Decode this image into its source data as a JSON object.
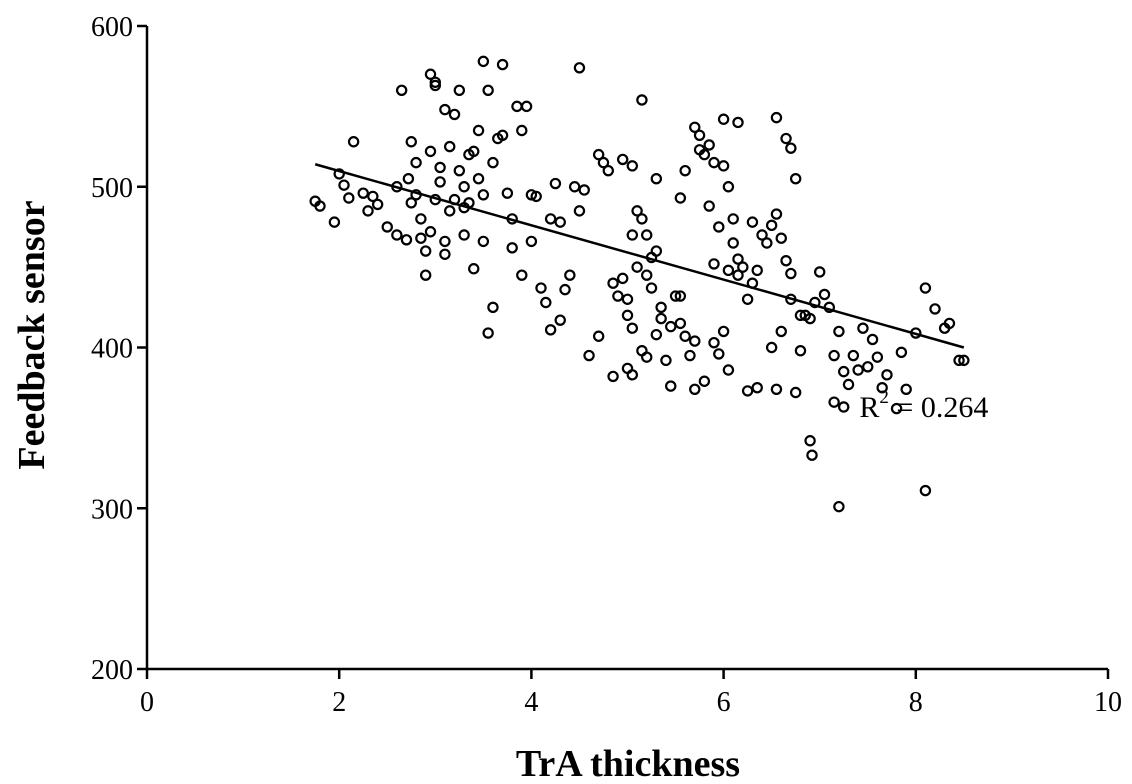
{
  "chart_data": {
    "type": "scatter",
    "title": "",
    "xlabel": "TrA thickness",
    "ylabel": "Feedback sensor",
    "xlim": [
      0,
      10
    ],
    "ylim": [
      200,
      600
    ],
    "x_ticks": [
      "0",
      "2",
      "4",
      "6",
      "8",
      "10"
    ],
    "y_ticks": [
      "200",
      "300",
      "400",
      "500",
      "600"
    ],
    "grid": false,
    "legend": "none",
    "marker": "open-circle",
    "trendline": {
      "type": "linear",
      "x": [
        1.75,
        8.5
      ],
      "y": [
        514,
        400
      ]
    },
    "annotation": {
      "base": "R",
      "sup": "2",
      "rest": " = 0.264",
      "anchor": {
        "x": 8.1,
        "y": 360
      }
    },
    "points": [
      [
        1.75,
        491
      ],
      [
        1.8,
        488
      ],
      [
        1.95,
        478
      ],
      [
        2.0,
        508
      ],
      [
        2.05,
        501
      ],
      [
        2.1,
        493
      ],
      [
        2.15,
        528
      ],
      [
        2.25,
        496
      ],
      [
        2.3,
        485
      ],
      [
        2.35,
        494
      ],
      [
        2.4,
        489
      ],
      [
        2.5,
        475
      ],
      [
        2.6,
        470
      ],
      [
        2.6,
        500
      ],
      [
        2.65,
        560
      ],
      [
        2.7,
        467
      ],
      [
        2.72,
        505
      ],
      [
        2.75,
        490
      ],
      [
        2.75,
        528
      ],
      [
        2.8,
        515
      ],
      [
        2.8,
        495
      ],
      [
        2.85,
        480
      ],
      [
        2.85,
        468
      ],
      [
        2.9,
        460
      ],
      [
        2.9,
        445
      ],
      [
        2.95,
        472
      ],
      [
        2.95,
        522
      ],
      [
        2.95,
        570
      ],
      [
        3.0,
        565
      ],
      [
        3.0,
        492
      ],
      [
        3.05,
        512
      ],
      [
        3.05,
        503
      ],
      [
        3.1,
        548
      ],
      [
        3.1,
        466
      ],
      [
        3.1,
        458
      ],
      [
        3.15,
        485
      ],
      [
        3.15,
        525
      ],
      [
        3.2,
        545
      ],
      [
        3.2,
        492
      ],
      [
        3.25,
        510
      ],
      [
        3.25,
        560
      ],
      [
        3.3,
        500
      ],
      [
        3.3,
        470
      ],
      [
        3.3,
        487
      ],
      [
        3.35,
        490
      ],
      [
        3.35,
        520
      ],
      [
        3.4,
        449
      ],
      [
        3.4,
        522
      ],
      [
        3.45,
        535
      ],
      [
        3.45,
        505
      ],
      [
        3.5,
        495
      ],
      [
        3.5,
        466
      ],
      [
        3.55,
        560
      ],
      [
        3.55,
        409
      ],
      [
        3.6,
        425
      ],
      [
        3.6,
        515
      ],
      [
        3.65,
        530
      ],
      [
        3.7,
        532
      ],
      [
        3.7,
        576
      ],
      [
        3.75,
        496
      ],
      [
        3.8,
        480
      ],
      [
        3.8,
        462
      ],
      [
        3.85,
        550
      ],
      [
        3.9,
        535
      ],
      [
        3.9,
        445
      ],
      [
        4.0,
        495
      ],
      [
        4.0,
        466
      ],
      [
        4.05,
        494
      ],
      [
        4.1,
        437
      ],
      [
        4.15,
        428
      ],
      [
        4.2,
        411
      ],
      [
        4.2,
        480
      ],
      [
        4.25,
        502
      ],
      [
        4.3,
        417
      ],
      [
        4.3,
        478
      ],
      [
        4.35,
        436
      ],
      [
        4.4,
        445
      ],
      [
        4.45,
        500
      ],
      [
        4.5,
        574
      ],
      [
        4.5,
        485
      ],
      [
        4.55,
        498
      ],
      [
        4.6,
        395
      ],
      [
        4.7,
        520
      ],
      [
        4.75,
        515
      ],
      [
        4.8,
        510
      ],
      [
        4.85,
        440
      ],
      [
        4.9,
        432
      ],
      [
        4.95,
        443
      ],
      [
        5.0,
        430
      ],
      [
        5.0,
        420
      ],
      [
        5.05,
        412
      ],
      [
        5.05,
        470
      ],
      [
        5.1,
        485
      ],
      [
        5.1,
        450
      ],
      [
        5.15,
        480
      ],
      [
        5.2,
        470
      ],
      [
        5.2,
        445
      ],
      [
        5.25,
        437
      ],
      [
        5.25,
        456
      ],
      [
        5.3,
        408
      ],
      [
        5.3,
        460
      ],
      [
        5.35,
        418
      ],
      [
        5.35,
        425
      ],
      [
        5.4,
        392
      ],
      [
        5.45,
        376
      ],
      [
        5.5,
        432
      ],
      [
        5.55,
        415
      ],
      [
        5.6,
        407
      ],
      [
        5.65,
        395
      ],
      [
        5.7,
        404
      ],
      [
        5.7,
        537
      ],
      [
        5.75,
        532
      ],
      [
        5.8,
        520
      ],
      [
        5.85,
        526
      ],
      [
        5.9,
        515
      ],
      [
        5.95,
        475
      ],
      [
        6.0,
        513
      ],
      [
        6.05,
        500
      ],
      [
        6.1,
        480
      ],
      [
        6.1,
        465
      ],
      [
        6.15,
        445
      ],
      [
        6.2,
        450
      ],
      [
        6.25,
        430
      ],
      [
        6.3,
        440
      ],
      [
        6.35,
        448
      ],
      [
        6.4,
        470
      ],
      [
        6.45,
        465
      ],
      [
        6.5,
        476
      ],
      [
        6.55,
        483
      ],
      [
        6.6,
        468
      ],
      [
        6.65,
        454
      ],
      [
        6.7,
        446
      ],
      [
        6.75,
        505
      ],
      [
        6.8,
        398
      ],
      [
        6.85,
        420
      ],
      [
        6.9,
        418
      ],
      [
        6.95,
        428
      ],
      [
        7.0,
        447
      ],
      [
        7.05,
        433
      ],
      [
        7.1,
        425
      ],
      [
        7.15,
        395
      ],
      [
        7.2,
        410
      ],
      [
        7.25,
        385
      ],
      [
        7.3,
        377
      ],
      [
        7.35,
        395
      ],
      [
        7.4,
        386
      ],
      [
        7.45,
        412
      ],
      [
        7.5,
        388
      ],
      [
        7.55,
        405
      ],
      [
        7.6,
        394
      ],
      [
        7.65,
        375
      ],
      [
        7.7,
        383
      ],
      [
        7.8,
        362
      ],
      [
        7.85,
        397
      ],
      [
        7.9,
        374
      ],
      [
        8.0,
        409
      ],
      [
        8.1,
        437
      ],
      [
        8.2,
        424
      ],
      [
        8.3,
        412
      ],
      [
        8.35,
        415
      ],
      [
        8.45,
        392
      ],
      [
        8.5,
        392
      ],
      [
        6.9,
        342
      ],
      [
        6.92,
        333
      ],
      [
        7.2,
        301
      ],
      [
        8.1,
        311
      ],
      [
        7.25,
        363
      ],
      [
        7.15,
        366
      ],
      [
        6.55,
        374
      ],
      [
        6.75,
        372
      ],
      [
        4.7,
        407
      ],
      [
        4.85,
        382
      ],
      [
        5.0,
        387
      ],
      [
        5.05,
        383
      ],
      [
        5.15,
        398
      ],
      [
        5.2,
        394
      ],
      [
        5.7,
        374
      ],
      [
        5.8,
        379
      ],
      [
        5.45,
        413
      ],
      [
        5.55,
        432
      ],
      [
        5.9,
        403
      ],
      [
        5.95,
        396
      ],
      [
        6.0,
        410
      ],
      [
        6.05,
        386
      ],
      [
        6.25,
        373
      ],
      [
        6.35,
        375
      ],
      [
        6.5,
        400
      ],
      [
        6.6,
        410
      ],
      [
        6.7,
        430
      ],
      [
        6.8,
        420
      ],
      [
        3.0,
        563
      ],
      [
        3.5,
        578
      ],
      [
        3.95,
        550
      ],
      [
        5.15,
        554
      ],
      [
        5.85,
        488
      ],
      [
        6.0,
        542
      ],
      [
        6.15,
        540
      ],
      [
        6.55,
        543
      ],
      [
        6.65,
        530
      ],
      [
        6.7,
        524
      ],
      [
        4.95,
        517
      ],
      [
        5.05,
        513
      ],
      [
        5.3,
        505
      ],
      [
        5.55,
        493
      ],
      [
        5.6,
        510
      ],
      [
        5.75,
        523
      ],
      [
        5.9,
        452
      ],
      [
        6.05,
        448
      ],
      [
        6.15,
        455
      ],
      [
        6.3,
        478
      ]
    ]
  }
}
